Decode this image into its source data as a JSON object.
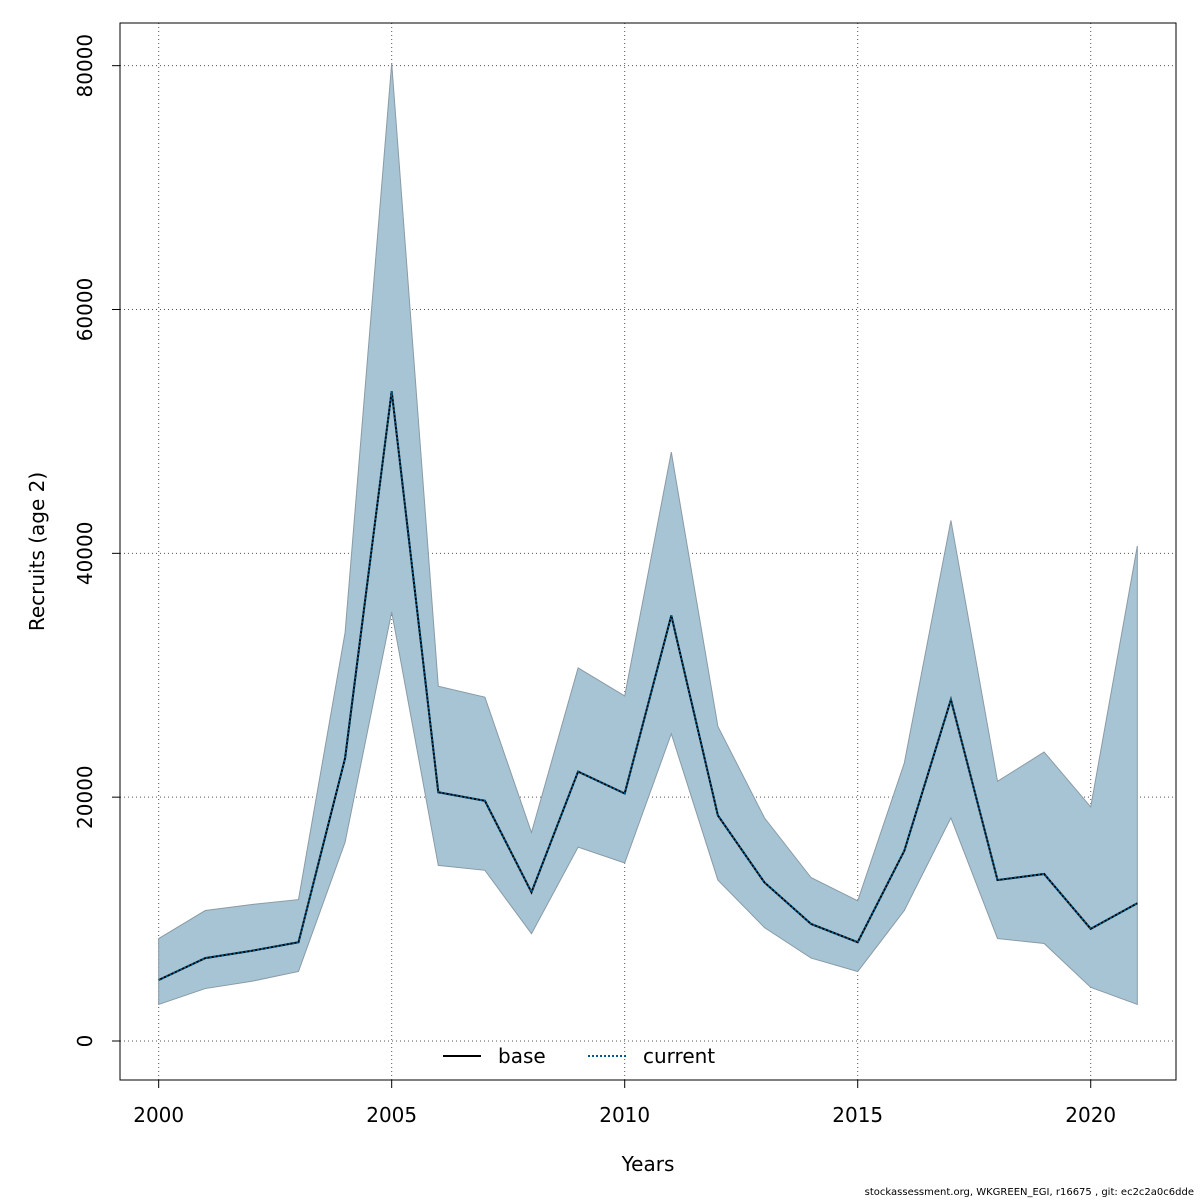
{
  "chart_data": {
    "type": "area",
    "xlabel": "Years",
    "ylabel": "Recruits (age 2)",
    "xlim": [
      1999.17,
      2021.83
    ],
    "ylim": [
      -3200,
      83500
    ],
    "x_ticks": [
      2000,
      2005,
      2010,
      2015,
      2020
    ],
    "y_ticks": [
      0,
      20000,
      40000,
      60000,
      80000
    ],
    "grid": true,
    "legend_position": "bottom-center",
    "band_color": "#a6c4d4",
    "band_border_color": "#8a9ba6",
    "years": [
      2000,
      2001,
      2002,
      2003,
      2004,
      2005,
      2006,
      2007,
      2008,
      2009,
      2010,
      2011,
      2012,
      2013,
      2014,
      2015,
      2016,
      2017,
      2018,
      2019,
      2020,
      2021
    ],
    "ci_upper": [
      8400,
      10700,
      11200,
      11600,
      33500,
      80200,
      29100,
      28200,
      17100,
      30600,
      28300,
      48300,
      25800,
      18300,
      13400,
      11500,
      22800,
      42700,
      21300,
      23700,
      19200,
      40600
    ],
    "ci_lower": [
      3000,
      4300,
      4900,
      5700,
      16300,
      35200,
      14400,
      14000,
      8800,
      15900,
      14600,
      25200,
      13200,
      9300,
      6800,
      5700,
      10700,
      18300,
      8400,
      8000,
      4400,
      3000
    ],
    "series": [
      {
        "name": "base",
        "style": "solid",
        "color": "#000000",
        "values": [
          5000,
          6800,
          7400,
          8100,
          23200,
          53300,
          20400,
          19700,
          12200,
          22100,
          20300,
          34900,
          18500,
          13000,
          9600,
          8100,
          15600,
          28000,
          13200,
          13700,
          9200,
          11300
        ]
      },
      {
        "name": "current",
        "style": "dotted",
        "color": "#005a8c",
        "values": [
          5000,
          6800,
          7400,
          8100,
          23200,
          53300,
          20400,
          19700,
          12200,
          22100,
          20300,
          34900,
          18500,
          13000,
          9600,
          8100,
          15600,
          28000,
          13200,
          13700,
          9200,
          11300
        ]
      }
    ]
  },
  "footer": "stockassessment.org, WKGREEN_EGI, r16675 , git: ec2c2a0c6dde"
}
